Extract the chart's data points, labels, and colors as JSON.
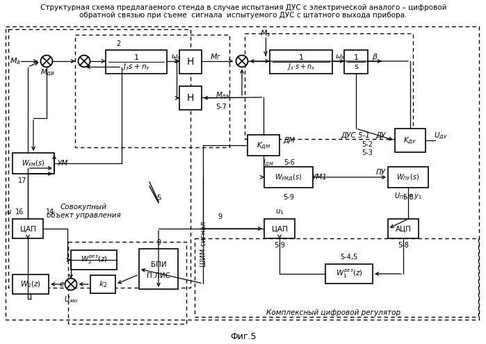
{
  "title1": "Структурная схема предлагаемого стенда в случае испытания ДУС с электрической аналого – цифровой",
  "title2": "обратной связью при съеме  сигнала  испытуемого ДУС с штатного выхода прибора.",
  "fig": "Фиг.5"
}
